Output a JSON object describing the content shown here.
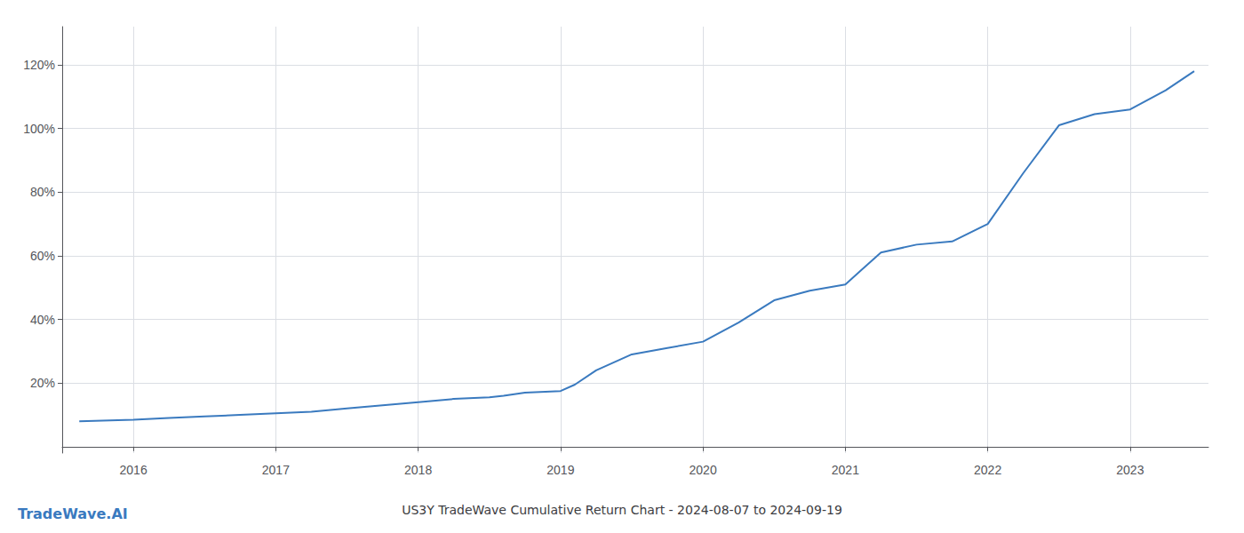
{
  "chart_data": {
    "type": "line",
    "title": "US3Y TradeWave Cumulative Return Chart - 2024-08-07 to 2024-09-19",
    "annotations": [
      {
        "text": "TradeWave.AI",
        "color": "#3a7abf"
      }
    ],
    "x": [
      2015.62,
      2016.0,
      2016.25,
      2016.5,
      2016.75,
      2017.0,
      2017.25,
      2017.5,
      2017.75,
      2018.0,
      2018.25,
      2018.5,
      2018.6,
      2018.75,
      2019.0,
      2019.1,
      2019.25,
      2019.5,
      2019.75,
      2020.0,
      2020.25,
      2020.5,
      2020.75,
      2021.0,
      2021.1,
      2021.25,
      2021.5,
      2021.75,
      2022.0,
      2022.25,
      2022.5,
      2022.75,
      2023.0,
      2023.25,
      2023.45
    ],
    "values": [
      0.08,
      0.085,
      0.09,
      0.095,
      0.1,
      0.105,
      0.11,
      0.12,
      0.13,
      0.14,
      0.15,
      0.155,
      0.16,
      0.17,
      0.175,
      0.195,
      0.24,
      0.29,
      0.31,
      0.33,
      0.39,
      0.46,
      0.49,
      0.51,
      0.55,
      0.61,
      0.635,
      0.645,
      0.7,
      0.86,
      1.01,
      1.045,
      1.06,
      1.12,
      1.18
    ],
    "color": "#3a7abf",
    "xlim": [
      2015.5,
      2023.55
    ],
    "xticks": [
      2016,
      2017,
      2018,
      2019,
      2020,
      2021,
      2022,
      2023
    ],
    "ylim": [
      -0.02,
      1.32
    ],
    "yticks": [
      {
        "value": 0.2,
        "label": "20%"
      },
      {
        "value": 0.4,
        "label": "40%"
      },
      {
        "value": 0.6,
        "label": "60%"
      },
      {
        "value": 0.8,
        "label": "80%"
      },
      {
        "value": 1.0,
        "label": "100%"
      },
      {
        "value": 1.2,
        "label": "120%"
      }
    ],
    "grid": true
  }
}
